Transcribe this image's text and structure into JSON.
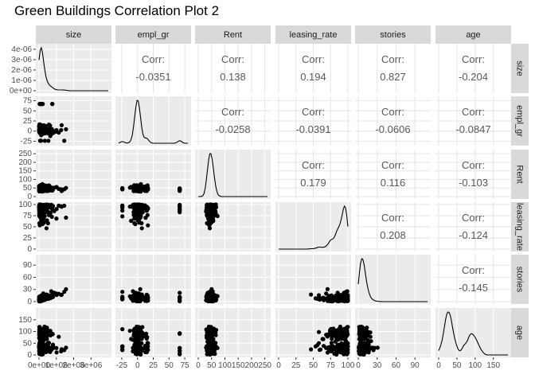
{
  "chart_data": {
    "type": "scatter-matrix",
    "title": "Green Buildings Correlation Plot 2",
    "variables": [
      "size",
      "empl_gr",
      "Rent",
      "leasing_rate",
      "stories",
      "age"
    ],
    "corr_label": "Corr:",
    "correlations": [
      {
        "row": "size",
        "col": "empl_gr",
        "value": "-0.0351"
      },
      {
        "row": "size",
        "col": "Rent",
        "value": "0.138"
      },
      {
        "row": "size",
        "col": "leasing_rate",
        "value": "0.194"
      },
      {
        "row": "size",
        "col": "stories",
        "value": "0.827"
      },
      {
        "row": "size",
        "col": "age",
        "value": "-0.204"
      },
      {
        "row": "empl_gr",
        "col": "Rent",
        "value": "-0.0258"
      },
      {
        "row": "empl_gr",
        "col": "leasing_rate",
        "value": "-0.0391"
      },
      {
        "row": "empl_gr",
        "col": "stories",
        "value": "-0.0606"
      },
      {
        "row": "empl_gr",
        "col": "age",
        "value": "-0.0847"
      },
      {
        "row": "Rent",
        "col": "leasing_rate",
        "value": "0.179"
      },
      {
        "row": "Rent",
        "col": "stories",
        "value": "0.116"
      },
      {
        "row": "Rent",
        "col": "age",
        "value": "-0.103"
      },
      {
        "row": "leasing_rate",
        "col": "stories",
        "value": "0.208"
      },
      {
        "row": "leasing_rate",
        "col": "age",
        "value": "-0.124"
      },
      {
        "row": "stories",
        "col": "age",
        "value": "-0.145"
      }
    ],
    "ranges": {
      "size": [
        0,
        4000000
      ],
      "empl_gr": [
        -30,
        80
      ],
      "Rent": [
        0,
        260
      ],
      "leasing_rate": [
        0,
        100
      ],
      "stories": [
        0,
        110
      ],
      "age": [
        0,
        190
      ]
    },
    "x_ticks": {
      "size": [
        "0e+00",
        "1e+06",
        "2e+06",
        "3e+06"
      ],
      "empl_gr": [
        "-25",
        "0",
        "25",
        "50",
        "75"
      ],
      "Rent": [
        "0",
        "50",
        "100",
        "150",
        "200",
        "250"
      ],
      "leasing_rate": [
        "0",
        "25",
        "50",
        "75",
        "100"
      ],
      "stories": [
        "0",
        "30",
        "60",
        "90"
      ],
      "age": [
        "0",
        "50",
        "100",
        "150"
      ]
    },
    "x_tick_values": {
      "size": [
        0,
        1000000,
        2000000,
        3000000
      ],
      "empl_gr": [
        -25,
        0,
        25,
        50,
        75
      ],
      "Rent": [
        0,
        50,
        100,
        150,
        200,
        250
      ],
      "leasing_rate": [
        0,
        25,
        50,
        75,
        100
      ],
      "stories": [
        0,
        30,
        60,
        90
      ],
      "age": [
        0,
        50,
        100,
        150
      ]
    },
    "density_y_ticks": [
      "0e+00",
      "1e-06",
      "2e-06",
      "3e-06",
      "4e-06"
    ],
    "density_y_tick_values": [
      0,
      1e-06,
      2e-06,
      3e-06,
      4e-06
    ],
    "density_y_max": 4.3e-06,
    "y_ticks": {
      "empl_gr": [
        "-25",
        "0",
        "25",
        "50",
        "75"
      ],
      "Rent": [
        "0",
        "50",
        "100",
        "150",
        "200",
        "250"
      ],
      "leasing_rate": [
        "0",
        "25",
        "50",
        "75",
        "100"
      ],
      "stories": [
        "0",
        "30",
        "60",
        "90"
      ],
      "age": [
        "0",
        "50",
        "100",
        "150"
      ]
    },
    "y_tick_values": {
      "empl_gr": [
        -25,
        0,
        25,
        50,
        75
      ],
      "Rent": [
        0,
        50,
        100,
        150,
        200,
        250
      ],
      "leasing_rate": [
        0,
        25,
        50,
        75,
        100
      ],
      "stories": [
        0,
        30,
        60,
        90
      ],
      "age": [
        0,
        50,
        100,
        150
      ]
    },
    "colors": {
      "panel_bg": "#ebebeb",
      "grid": "#ffffff",
      "strip_bg": "#d9d9d9",
      "points": "#000000"
    }
  }
}
